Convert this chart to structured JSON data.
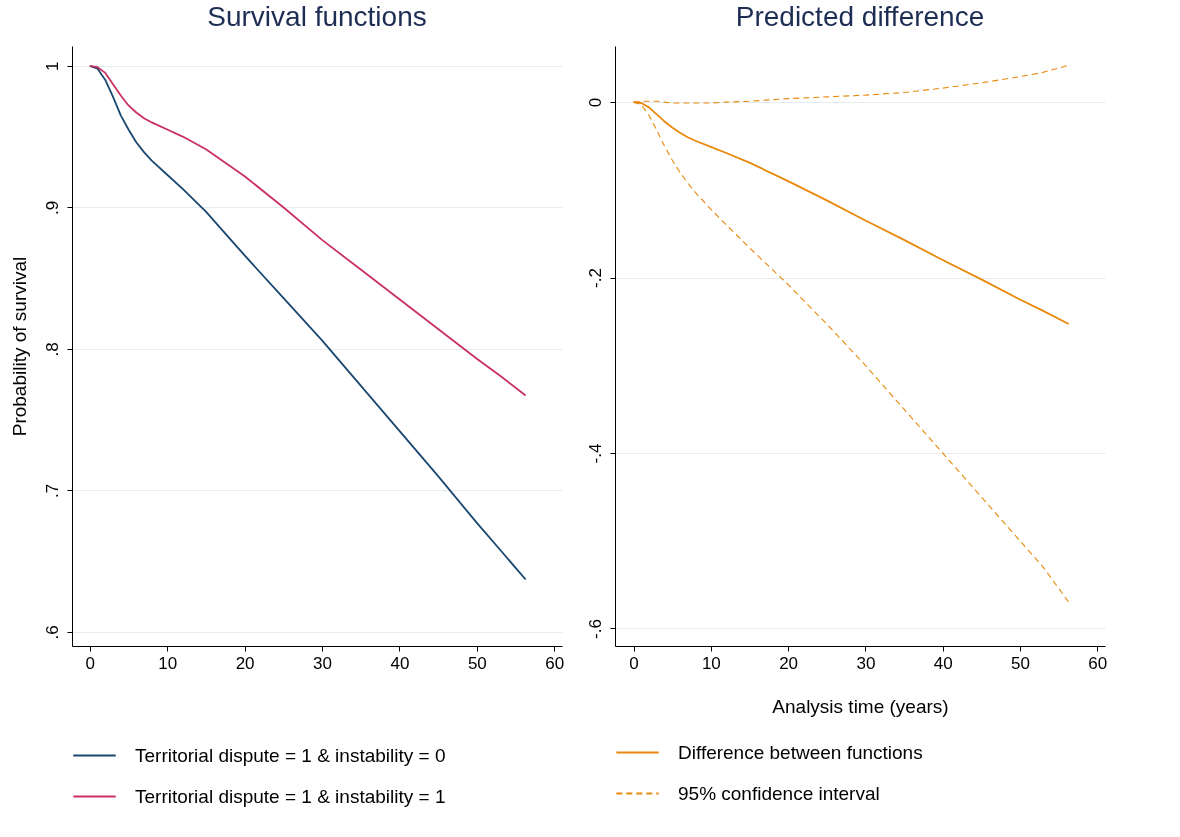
{
  "chart_data": [
    {
      "type": "line",
      "title": "Survival functions",
      "ylabel": "Probability of survival",
      "xlim": [
        -2.3,
        61
      ],
      "ylim": [
        0.59,
        1.014
      ],
      "xticks": [
        0,
        10,
        20,
        30,
        40,
        50,
        60
      ],
      "yticks": [
        {
          "value": 0.6,
          "label": ".6"
        },
        {
          "value": 0.7,
          "label": ".7"
        },
        {
          "value": 0.8,
          "label": ".8"
        },
        {
          "value": 0.9,
          "label": ".9"
        },
        1
      ],
      "grid": "y",
      "legend": "bottom",
      "line_style": "solid",
      "x": [
        0,
        1,
        2,
        3,
        4,
        5,
        6,
        7,
        8,
        10,
        12,
        15,
        20,
        25,
        30,
        35,
        40,
        45,
        50,
        53,
        56.3
      ],
      "series": [
        {
          "name": "Territorial dispute = 1 & instability = 0",
          "color": "#1a476f",
          "values": [
            1,
            0.998,
            0.99,
            0.978,
            0.965,
            0.955,
            0.946,
            0.939,
            0.933,
            0.923,
            0.913,
            0.897,
            0.866,
            0.836,
            0.806,
            0.774,
            0.742,
            0.71,
            0.677,
            0.658,
            0.637
          ]
        },
        {
          "name": "Territorial dispute = 1 & instability = 1",
          "color": "#c9305f",
          "values": [
            1,
            0.999,
            0.995,
            0.987,
            0.979,
            0.972,
            0.967,
            0.963,
            0.96,
            0.955,
            0.95,
            0.941,
            0.922,
            0.9,
            0.877,
            0.856,
            0.835,
            0.814,
            0.793,
            0.781,
            0.767
          ]
        }
      ]
    },
    {
      "type": "line",
      "title": "Predicted difference",
      "xlabel": "Analysis time (years)",
      "xlim": [
        -2.4,
        61
      ],
      "ylim": [
        -0.62,
        0.064
      ],
      "xticks": [
        0,
        10,
        20,
        30,
        40,
        50,
        60
      ],
      "yticks": [
        {
          "value": -0.6,
          "label": "-.6"
        },
        {
          "value": -0.4,
          "label": "-.4"
        },
        {
          "value": -0.2,
          "label": "-.2"
        },
        0
      ],
      "grid": "y",
      "legend": "bottom",
      "x": [
        0,
        1,
        2,
        3,
        4,
        5,
        6,
        7,
        8,
        10,
        12,
        15,
        20,
        25,
        30,
        35,
        40,
        45,
        50,
        53,
        56.3
      ],
      "series": [
        {
          "name": "Difference between functions",
          "color": "#e8890c",
          "line_style": "solid",
          "values": [
            0,
            -0.001,
            -0.006,
            -0.014,
            -0.022,
            -0.029,
            -0.035,
            -0.04,
            -0.044,
            -0.051,
            -0.058,
            -0.069,
            -0.09,
            -0.112,
            -0.135,
            -0.157,
            -0.18,
            -0.202,
            -0.225,
            -0.238,
            -0.253
          ]
        },
        {
          "name": "95% confidence interval",
          "color": "#e8890c",
          "line_style": "dashed",
          "values": [
            0,
            -0.003,
            -0.015,
            -0.032,
            -0.05,
            -0.066,
            -0.08,
            -0.092,
            -0.103,
            -0.122,
            -0.14,
            -0.166,
            -0.208,
            -0.253,
            -0.3,
            -0.35,
            -0.4,
            -0.45,
            -0.5,
            -0.53,
            -0.57
          ]
        },
        {
          "color": "#e8890c",
          "line_style": "dashed",
          "values": [
            0,
            0.001,
            0.001,
            0.001,
            0,
            -0.001,
            -0.001,
            -0.001,
            -0.001,
            -0.001,
            0,
            0.001,
            0.004,
            0.006,
            0.008,
            0.011,
            0.016,
            0.022,
            0.029,
            0.034,
            0.042
          ]
        }
      ]
    }
  ]
}
